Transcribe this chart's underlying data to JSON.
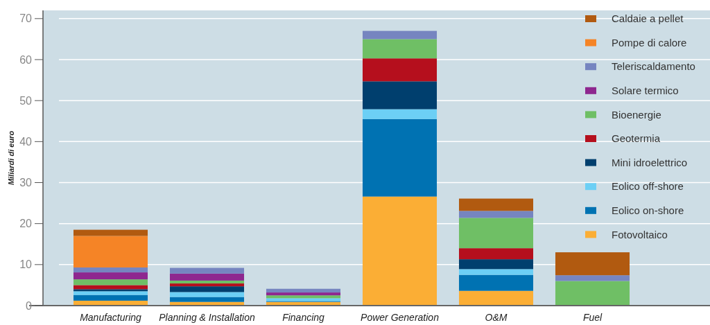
{
  "chart_data": {
    "type": "bar",
    "stacked": true,
    "ylabel": "Miliardi di euro",
    "categories": [
      "Manufacturing",
      "Planning & Installation",
      "Financing",
      "Power Generation",
      "O&M",
      "Fuel"
    ],
    "ylim": [
      0,
      72
    ],
    "yticks": [
      0,
      10,
      20,
      30,
      40,
      50,
      60,
      70
    ],
    "grid": "y",
    "legend": "top right",
    "series": [
      {
        "name": "Fotovoltaico",
        "color": "#fbae35",
        "values": [
          1.2,
          0.9,
          0.9,
          26.6,
          3.6,
          null
        ]
      },
      {
        "name": "Eolico on-shore",
        "color": "#0072b2",
        "values": [
          1.4,
          1.2,
          0.2,
          18.9,
          3.9,
          null
        ]
      },
      {
        "name": "Eolico off-shore",
        "color": "#6ccff5",
        "values": [
          0.9,
          1.2,
          0.7,
          2.4,
          1.4,
          null
        ]
      },
      {
        "name": "Mini idroelettrico",
        "color": "#003f6e",
        "values": [
          0.5,
          1.4,
          null,
          6.8,
          2.4,
          null
        ]
      },
      {
        "name": "Geotermia",
        "color": "#b50f1d",
        "values": [
          1.0,
          0.7,
          null,
          5.6,
          2.7,
          null
        ]
      },
      {
        "name": "Bioenergie",
        "color": "#6fbf65",
        "values": [
          1.4,
          0.7,
          0.7,
          4.7,
          7.4,
          6.0
        ]
      },
      {
        "name": "Solare termico",
        "color": "#8e278f",
        "values": [
          1.7,
          1.7,
          0.7,
          null,
          null,
          null
        ]
      },
      {
        "name": "Teleriscaldamento",
        "color": "#7685c0",
        "values": [
          1.2,
          1.4,
          0.9,
          2.0,
          1.7,
          1.4
        ]
      },
      {
        "name": "Pompe di calore",
        "color": "#f58426",
        "values": [
          7.7,
          null,
          null,
          null,
          null,
          null
        ]
      },
      {
        "name": "Caldaie a pellet",
        "color": "#b15a10",
        "values": [
          1.5,
          null,
          null,
          null,
          3.0,
          5.6
        ]
      }
    ]
  }
}
